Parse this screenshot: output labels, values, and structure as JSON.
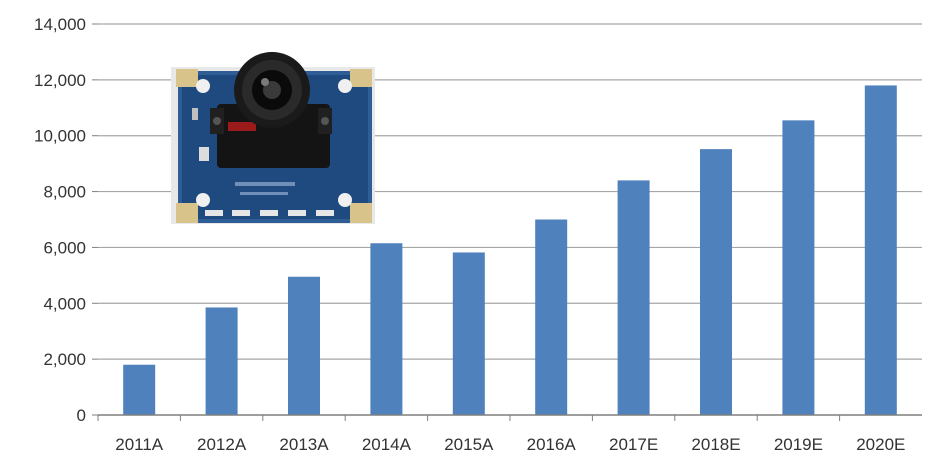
{
  "chart_data": {
    "type": "bar",
    "title": "",
    "xlabel": "",
    "ylabel": "",
    "categories": [
      "2011A",
      "2012A",
      "2013A",
      "2014A",
      "2015A",
      "2016A",
      "2017E",
      "2018E",
      "2019E",
      "2020E"
    ],
    "series": [
      {
        "values": [
          1800,
          3850,
          4950,
          6150,
          5820,
          7000,
          8400,
          9520,
          10550,
          11800
        ]
      }
    ],
    "ylim": [
      0,
      14000
    ],
    "y_ticks": [
      "0",
      "2,000",
      "4,000",
      "6,000",
      "8,000",
      "10,000",
      "12,000",
      "14,000"
    ],
    "grid": true,
    "legend": "none",
    "colors": {
      "bar": "#4f81bd",
      "grid": "#a6a6a6",
      "axis": "#7f7f7f",
      "text": "#333333"
    },
    "inset_image": {
      "subject": "USB camera module circuit board",
      "icon": "camera-module-photo"
    }
  }
}
